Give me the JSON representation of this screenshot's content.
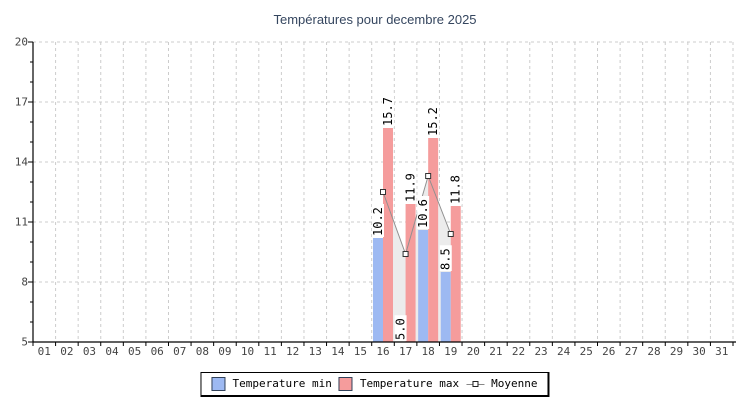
{
  "title": "Températures pour decembre 2025",
  "legend": {
    "min": "Temperature min",
    "max": "Temperature max",
    "moyenne": "Moyenne"
  },
  "colors": {
    "title_text": "#35465f",
    "axis": "#000000",
    "tick_label": "#444444",
    "gridline": "#cccccc",
    "bar_min": "#9db9f2",
    "bar_max": "#f59c9c",
    "moyenne_line": "#909090",
    "moyenne_area": "#ececec",
    "marker_fill": "#ffffff",
    "marker_stroke": "#333333",
    "value_label": "#000000",
    "value_label_bg": "#ffffff",
    "legend_swatch_border": "#32425a"
  },
  "chart_data": {
    "type": "bar",
    "title": "Températures pour decembre 2025",
    "xlabel": "",
    "ylabel": "",
    "ylim": [
      5,
      20
    ],
    "y_major_ticks": [
      5,
      8,
      11,
      14,
      17,
      20
    ],
    "y_minor_step": 1,
    "grid": "dashed",
    "legend_position": "bottom-center",
    "x_categories": [
      "01",
      "02",
      "03",
      "04",
      "05",
      "06",
      "07",
      "08",
      "09",
      "10",
      "11",
      "12",
      "13",
      "14",
      "15",
      "16",
      "17",
      "18",
      "19",
      "20",
      "21",
      "22",
      "23",
      "24",
      "25",
      "26",
      "27",
      "28",
      "29",
      "30",
      "31"
    ],
    "value_label_style": "rotated-90-white-box",
    "series": [
      {
        "name": "Temperature min",
        "type": "bar",
        "color": "#9db9f2",
        "points": [
          {
            "day": 16,
            "value": 10.2
          },
          {
            "day": 17,
            "value": 5.0
          },
          {
            "day": 18,
            "value": 10.6
          },
          {
            "day": 19,
            "value": 8.5
          }
        ]
      },
      {
        "name": "Temperature max",
        "type": "bar",
        "color": "#f59c9c",
        "points": [
          {
            "day": 16,
            "value": 15.7
          },
          {
            "day": 17,
            "value": 11.9
          },
          {
            "day": 18,
            "value": 15.2
          },
          {
            "day": 19,
            "value": 11.8
          }
        ]
      },
      {
        "name": "Moyenne",
        "type": "line-area",
        "color": "#909090",
        "area_fill": "#ececec",
        "marker": "square",
        "points": [
          {
            "day": 16,
            "value": 12.5
          },
          {
            "day": 17,
            "value": 9.4
          },
          {
            "day": 18,
            "value": 13.3
          },
          {
            "day": 19,
            "value": 10.4
          }
        ]
      }
    ]
  }
}
